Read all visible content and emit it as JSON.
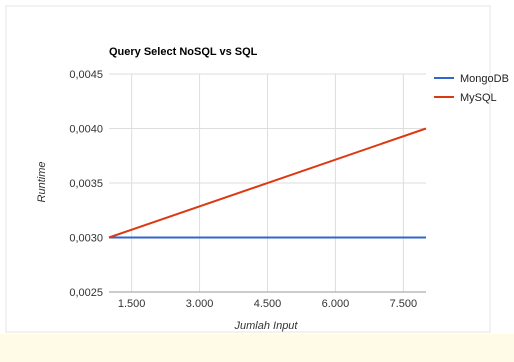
{
  "chart_data": {
    "type": "line",
    "title": "Query Select NoSQL vs SQL",
    "xlabel": "Jumlah Input",
    "ylabel": "Runtime",
    "x_ticks": [
      "1.500",
      "3.000",
      "4.500",
      "6.000",
      "7.500"
    ],
    "y_ticks": [
      "0,0025",
      "0,0030",
      "0,0035",
      "0,0040",
      "0,0045"
    ],
    "xlim": [
      1000,
      8000
    ],
    "ylim": [
      0.0025,
      0.0045
    ],
    "grid": true,
    "legend_position": "right",
    "series": [
      {
        "name": "MongoDB",
        "color": "#3366cc",
        "x": [
          1000,
          8000
        ],
        "y": [
          0.003,
          0.003
        ]
      },
      {
        "name": "MySQL",
        "color": "#dc3912",
        "x": [
          1000,
          8000
        ],
        "y": [
          0.003,
          0.004
        ]
      }
    ]
  }
}
